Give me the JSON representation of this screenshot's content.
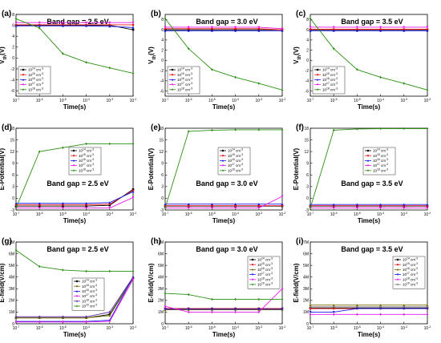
{
  "colors": {
    "black": "#000000",
    "red": "#e8151b",
    "blue": "#1a1ae6",
    "magenta": "#e619e6",
    "green": "#2a8f12",
    "olive": "#7a6a00",
    "purple": "#5a2a9a",
    "gray": "#7a7a7a"
  },
  "chart_data": [
    {
      "id": "a",
      "tag": "(a)",
      "type": "line",
      "title": "Band gap = 2.5 eV",
      "xlabel": "Time(s)",
      "ylabel": "V_th(V)",
      "xscale": "log",
      "xlim": [
        1e-07,
        0.01
      ],
      "x_ticks": [
        "10^-7",
        "10^-6",
        "10^-5",
        "10^-4",
        "10^-3",
        "10^-2"
      ],
      "ylim": [
        -7,
        8
      ],
      "y_ticks": [
        "8",
        "6",
        "4",
        "2",
        "0",
        "-2",
        "-4",
        "-6"
      ],
      "legend_position": "bottom-left",
      "x": [
        1e-07,
        1e-06,
        1e-05,
        0.0001,
        0.001,
        0.01
      ],
      "series": [
        {
          "name": "10^14 cm^-3",
          "color": "black",
          "marker": "square",
          "values": [
            6.0,
            6.0,
            6.0,
            6.0,
            6.0,
            5.2
          ]
        },
        {
          "name": "10^15 cm^-3",
          "color": "red",
          "marker": "circle",
          "values": [
            6.1,
            6.1,
            6.1,
            6.1,
            6.1,
            6.1
          ]
        },
        {
          "name": "10^16 cm^-3",
          "color": "blue",
          "marker": "triangle",
          "values": [
            5.9,
            5.9,
            5.9,
            5.9,
            5.8,
            5.6
          ]
        },
        {
          "name": "10^17 cm^-3",
          "color": "magenta",
          "marker": "down-triangle",
          "values": [
            6.5,
            6.5,
            6.5,
            6.5,
            6.5,
            6.5
          ]
        },
        {
          "name": "10^18 cm^-3",
          "color": "green",
          "marker": "diamond",
          "values": [
            7.2,
            5.5,
            0.8,
            -0.8,
            -1.8,
            -2.8
          ]
        }
      ]
    },
    {
      "id": "b",
      "tag": "(b)",
      "type": "line",
      "title": "Band gap = 3.0 eV",
      "xlabel": "Time(s)",
      "ylabel": "V_th(V)",
      "xscale": "log",
      "xlim": [
        1e-07,
        0.01
      ],
      "x_ticks": [
        "10^-7",
        "10^-6",
        "10^-5",
        "10^-4",
        "10^-3",
        "10^-2"
      ],
      "ylim": [
        -7,
        9
      ],
      "y_ticks": [
        "8",
        "6",
        "4",
        "2",
        "0",
        "-2",
        "-4",
        "-6"
      ],
      "legend_position": "bottom-left",
      "x": [
        1e-07,
        1e-06,
        1e-05,
        0.0001,
        0.001,
        0.01
      ],
      "series": [
        {
          "name": "10^14 cm^-3",
          "color": "black",
          "marker": "square",
          "values": [
            6.0,
            6.0,
            6.0,
            6.0,
            6.0,
            6.0
          ]
        },
        {
          "name": "10^15 cm^-3",
          "color": "red",
          "marker": "circle",
          "values": [
            6.2,
            6.2,
            6.2,
            6.2,
            6.2,
            6.0
          ]
        },
        {
          "name": "10^16 cm^-3",
          "color": "blue",
          "marker": "triangle",
          "values": [
            5.8,
            5.8,
            5.8,
            5.8,
            5.8,
            5.8
          ]
        },
        {
          "name": "10^17 cm^-3",
          "color": "magenta",
          "marker": "down-triangle",
          "values": [
            6.5,
            6.5,
            6.5,
            6.5,
            6.5,
            6.2
          ]
        },
        {
          "name": "10^18 cm^-3",
          "color": "green",
          "marker": "diamond",
          "values": [
            8.2,
            2.3,
            -1.8,
            -3.3,
            -4.5,
            -5.8
          ]
        }
      ]
    },
    {
      "id": "c",
      "tag": "(c)",
      "type": "line",
      "title": "Band gap = 3.5 eV",
      "xlabel": "Time(s)",
      "ylabel": "V_th(V)",
      "xscale": "log",
      "xlim": [
        1e-07,
        0.01
      ],
      "x_ticks": [
        "10^-7",
        "10^-6",
        "10^-5",
        "10^-4",
        "10^-3",
        "10^-2"
      ],
      "ylim": [
        -7,
        9
      ],
      "y_ticks": [
        "8",
        "6",
        "4",
        "2",
        "0",
        "-2",
        "-4",
        "-6"
      ],
      "legend_position": "bottom-left",
      "x": [
        1e-07,
        1e-06,
        1e-05,
        0.0001,
        0.001,
        0.01
      ],
      "series": [
        {
          "name": "10^14 cm^-3",
          "color": "black",
          "marker": "square",
          "values": [
            6.0,
            6.0,
            6.0,
            6.0,
            6.0,
            6.0
          ]
        },
        {
          "name": "10^15 cm^-3",
          "color": "red",
          "marker": "circle",
          "values": [
            6.1,
            6.1,
            6.1,
            6.1,
            6.1,
            6.1
          ]
        },
        {
          "name": "10^16 cm^-3",
          "color": "blue",
          "marker": "triangle",
          "values": [
            5.8,
            5.8,
            5.8,
            5.8,
            5.8,
            5.8
          ]
        },
        {
          "name": "10^17 cm^-3",
          "color": "magenta",
          "marker": "down-triangle",
          "values": [
            6.5,
            6.5,
            6.5,
            6.5,
            6.5,
            6.5
          ]
        },
        {
          "name": "10^18 cm^-3",
          "color": "green",
          "marker": "diamond",
          "values": [
            8.2,
            2.3,
            -1.8,
            -3.3,
            -4.5,
            -5.8
          ]
        }
      ]
    },
    {
      "id": "d",
      "tag": "(d)",
      "type": "line",
      "title": "Band gap = 2.5 eV",
      "xlabel": "Time(s)",
      "ylabel": "E-Potential(V)",
      "xscale": "log",
      "xlim": [
        1e-07,
        0.01
      ],
      "x_ticks": [
        "10^-7",
        "10^-6",
        "10^-5",
        "10^-4",
        "10^-3",
        "10^-2"
      ],
      "ylim": [
        -3,
        18
      ],
      "y_ticks": [
        "18",
        "15",
        "12",
        "9",
        "6",
        "3",
        "0",
        "-3"
      ],
      "legend_position": "center",
      "x": [
        1e-07,
        1e-06,
        1e-05,
        0.0001,
        0.001,
        0.01
      ],
      "series": [
        {
          "name": "10^14 cm^-3",
          "color": "black",
          "marker": "square",
          "values": [
            -2.0,
            -2.0,
            -2.0,
            -2.0,
            -1.8,
            2.3
          ]
        },
        {
          "name": "10^15 cm^-3",
          "color": "red",
          "marker": "circle",
          "values": [
            -1.7,
            -1.7,
            -1.7,
            -1.7,
            -1.5,
            2.0
          ]
        },
        {
          "name": "10^16 cm^-3",
          "color": "blue",
          "marker": "triangle",
          "values": [
            -1.3,
            -1.3,
            -1.3,
            -1.3,
            -1.1,
            1.7
          ]
        },
        {
          "name": "10^17 cm^-3",
          "color": "magenta",
          "marker": "down-triangle",
          "values": [
            -2.5,
            -2.5,
            -2.5,
            -2.5,
            -2.5,
            0.2
          ]
        },
        {
          "name": "10^18 cm^-3",
          "color": "green",
          "marker": "diamond",
          "values": [
            -2.5,
            12.0,
            13.0,
            14.0,
            14.0,
            14.0
          ]
        }
      ]
    },
    {
      "id": "e",
      "tag": "(e)",
      "type": "line",
      "title": "Band gap = 3.0 eV",
      "xlabel": "Time(s)",
      "ylabel": "E-Potential(V)",
      "xscale": "log",
      "xlim": [
        1e-07,
        0.01
      ],
      "x_ticks": [
        "10^-7",
        "10^-6",
        "10^-5",
        "10^-4",
        "10^-3",
        "10^-2"
      ],
      "ylim": [
        -3,
        18
      ],
      "y_ticks": [
        "18",
        "15",
        "12",
        "9",
        "6",
        "3",
        "0",
        "-3"
      ],
      "legend_position": "center",
      "x": [
        1e-07,
        1e-06,
        1e-05,
        0.0001,
        0.001,
        0.01
      ],
      "series": [
        {
          "name": "10^14 cm^-3",
          "color": "black",
          "marker": "square",
          "values": [
            -2.0,
            -2.0,
            -2.0,
            -2.0,
            -2.0,
            -2.0
          ]
        },
        {
          "name": "10^15 cm^-3",
          "color": "red",
          "marker": "circle",
          "values": [
            -1.9,
            -1.9,
            -1.9,
            -1.9,
            -1.9,
            -1.9
          ]
        },
        {
          "name": "10^16 cm^-3",
          "color": "blue",
          "marker": "triangle",
          "values": [
            -1.5,
            -1.5,
            -1.5,
            -1.5,
            -1.5,
            -1.5
          ]
        },
        {
          "name": "10^17 cm^-3",
          "color": "magenta",
          "marker": "down-triangle",
          "values": [
            -2.5,
            -2.5,
            -2.5,
            -2.5,
            -2.5,
            0.5
          ]
        },
        {
          "name": "10^18 cm^-3",
          "color": "green",
          "marker": "diamond",
          "values": [
            -2.5,
            17.2,
            17.5,
            17.6,
            17.6,
            17.6
          ]
        }
      ]
    },
    {
      "id": "f",
      "tag": "(f)",
      "type": "line",
      "title": "Band gap = 3.5 eV",
      "xlabel": "Time(s)",
      "ylabel": "E-Potential(V)",
      "xscale": "log",
      "xlim": [
        1e-07,
        0.01
      ],
      "x_ticks": [
        "10^-7",
        "10^-6",
        "10^-5",
        "10^-4",
        "10^-3",
        "10^-2"
      ],
      "ylim": [
        -3,
        18
      ],
      "y_ticks": [
        "18",
        "15",
        "12",
        "9",
        "6",
        "3",
        "0",
        "-3"
      ],
      "legend_position": "center",
      "x": [
        1e-07,
        1e-06,
        1e-05,
        0.0001,
        0.001,
        0.01
      ],
      "series": [
        {
          "name": "10^14 cm^-3",
          "color": "black",
          "marker": "square",
          "values": [
            -2.0,
            -2.0,
            -2.0,
            -2.0,
            -2.0,
            -2.0
          ]
        },
        {
          "name": "10^15 cm^-3",
          "color": "red",
          "marker": "circle",
          "values": [
            -1.9,
            -1.9,
            -1.9,
            -1.9,
            -1.9,
            -1.9
          ]
        },
        {
          "name": "10^16 cm^-3",
          "color": "blue",
          "marker": "triangle",
          "values": [
            -1.6,
            -1.6,
            -1.6,
            -1.6,
            -1.6,
            -1.6
          ]
        },
        {
          "name": "10^17 cm^-3",
          "color": "magenta",
          "marker": "down-triangle",
          "values": [
            -2.5,
            -2.5,
            -2.5,
            -2.5,
            -2.5,
            -2.5
          ]
        },
        {
          "name": "10^18 cm^-3",
          "color": "green",
          "marker": "diamond",
          "values": [
            -2.5,
            17.5,
            17.8,
            17.9,
            17.9,
            17.9
          ]
        }
      ]
    },
    {
      "id": "g",
      "tag": "(g)",
      "type": "line",
      "title": "Band gap = 2.5 eV",
      "xlabel": "Time(s)",
      "ylabel": "E-field(V/cm)",
      "xscale": "log",
      "xlim": [
        1e-07,
        0.01
      ],
      "x_ticks": [
        "10^-7",
        "10^-6",
        "10^-5",
        "10^-4",
        "10^-3",
        "10^-2"
      ],
      "ylim": [
        0,
        7
      ],
      "y_ticks": [
        "7M",
        "6M",
        "5M",
        "4M",
        "3M",
        "2M",
        "1M",
        "0"
      ],
      "legend_position": "center-right",
      "x": [
        1e-07,
        1e-06,
        1e-05,
        0.0001,
        0.001,
        0.01
      ],
      "series": [
        {
          "name": "10^14 cm^-3",
          "color": "black",
          "marker": "square",
          "values": [
            0.5,
            0.5,
            0.5,
            0.5,
            0.8,
            3.9
          ]
        },
        {
          "name": "10^15 cm^-3",
          "color": "olive",
          "marker": "circle",
          "values": [
            0.5,
            0.5,
            0.5,
            0.5,
            0.7,
            3.9
          ]
        },
        {
          "name": "10^16 cm^-3",
          "color": "blue",
          "marker": "triangle",
          "values": [
            0.2,
            0.2,
            0.2,
            0.2,
            0.3,
            4.0
          ]
        },
        {
          "name": "10^17 cm^-3",
          "color": "magenta",
          "marker": "down-triangle",
          "values": [
            0.15,
            0.15,
            0.15,
            0.15,
            0.2,
            3.8
          ]
        },
        {
          "name": "10^18 cm^-3",
          "color": "purple",
          "marker": "diamond",
          "values": [
            0.6,
            0.6,
            0.6,
            0.6,
            1.0,
            4.0
          ]
        },
        {
          "name": "10^19 cm^-3",
          "color": "green",
          "marker": "diamond",
          "values": [
            6.3,
            4.9,
            4.6,
            4.5,
            4.5,
            4.5
          ]
        }
      ]
    },
    {
      "id": "h",
      "tag": "(h)",
      "type": "line",
      "title": "Band gap = 3.0 eV",
      "xlabel": "Time(s)",
      "ylabel": "E-field(V/cm)",
      "xscale": "log",
      "xlim": [
        1e-07,
        0.01
      ],
      "x_ticks": [
        "10^-7",
        "10^-6",
        "10^-5",
        "10^-4",
        "10^-3",
        "10^-2"
      ],
      "ylim": [
        0,
        7
      ],
      "y_ticks": [
        "7M",
        "6M",
        "5M",
        "4M",
        "3M",
        "2M",
        "1M",
        "0"
      ],
      "legend_position": "top-right",
      "x": [
        1e-07,
        1e-06,
        1e-05,
        0.0001,
        0.001,
        0.01
      ],
      "series": [
        {
          "name": "10^14 cm^-3",
          "color": "black",
          "marker": "square",
          "values": [
            1.3,
            1.3,
            1.3,
            1.3,
            1.3,
            1.3
          ]
        },
        {
          "name": "10^15 cm^-3",
          "color": "red",
          "marker": "circle",
          "values": [
            1.3,
            1.3,
            1.3,
            1.3,
            1.3,
            1.3
          ]
        },
        {
          "name": "10^16 cm^-3",
          "color": "olive",
          "marker": "triangle",
          "values": [
            1.2,
            1.2,
            1.2,
            1.2,
            1.2,
            1.2
          ]
        },
        {
          "name": "10^17 cm^-3",
          "color": "blue",
          "marker": "down-triangle",
          "values": [
            1.25,
            1.25,
            1.25,
            1.25,
            1.25,
            1.25
          ]
        },
        {
          "name": "10^18 cm^-3",
          "color": "magenta",
          "marker": "diamond",
          "values": [
            1.5,
            1.0,
            1.0,
            1.0,
            1.0,
            3.0
          ]
        },
        {
          "name": "10^19 cm^-3",
          "color": "green",
          "marker": "diamond",
          "values": [
            2.6,
            2.5,
            2.1,
            2.1,
            2.1,
            2.1
          ]
        }
      ]
    },
    {
      "id": "i",
      "tag": "(i)",
      "type": "line",
      "title": "Band gap = 3.5 eV",
      "xlabel": "Time(s)",
      "ylabel": "E-field(V/cm)",
      "xscale": "log",
      "xlim": [
        1e-07,
        0.01
      ],
      "x_ticks": [
        "10^-7",
        "10^-6",
        "10^-5",
        "10^-4",
        "10^-3",
        "10^-2"
      ],
      "ylim": [
        0,
        7
      ],
      "y_ticks": [
        "7M",
        "6M",
        "5M",
        "4M",
        "3M",
        "2M",
        "1M",
        "0"
      ],
      "legend_position": "top-right",
      "x": [
        1e-07,
        1e-06,
        1e-05,
        0.0001,
        0.001,
        0.01
      ],
      "series": [
        {
          "name": "10^14 cm^-3",
          "color": "black",
          "marker": "square",
          "values": [
            1.35,
            1.35,
            1.35,
            1.35,
            1.35,
            1.35
          ]
        },
        {
          "name": "10^15 cm^-3",
          "color": "red",
          "marker": "circle",
          "values": [
            1.3,
            1.3,
            1.3,
            1.3,
            1.3,
            1.3
          ]
        },
        {
          "name": "10^16 cm^-3",
          "color": "olive",
          "marker": "triangle",
          "values": [
            1.6,
            1.6,
            1.6,
            1.6,
            1.6,
            1.6
          ]
        },
        {
          "name": "10^17 cm^-3",
          "color": "blue",
          "marker": "down-triangle",
          "values": [
            1.0,
            1.0,
            1.3,
            1.3,
            1.3,
            1.3
          ]
        },
        {
          "name": "10^18 cm^-3",
          "color": "magenta",
          "marker": "diamond",
          "values": [
            0.8,
            0.8,
            0.8,
            0.8,
            0.8,
            0.8
          ]
        },
        {
          "name": "10^19 cm^-3",
          "color": "gray",
          "marker": "diamond",
          "values": [
            1.45,
            1.45,
            1.45,
            1.45,
            1.45,
            1.45
          ]
        }
      ]
    }
  ]
}
